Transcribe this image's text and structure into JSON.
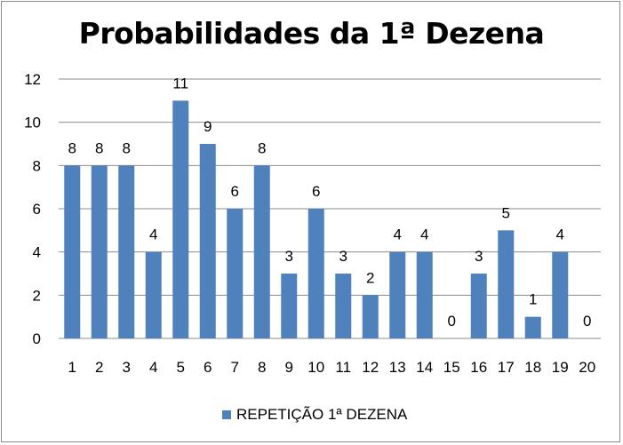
{
  "chart_data": {
    "type": "bar",
    "title": "Probabilidades da 1ª Dezena",
    "categories": [
      "1",
      "2",
      "3",
      "4",
      "5",
      "6",
      "7",
      "8",
      "9",
      "10",
      "11",
      "12",
      "13",
      "14",
      "15",
      "16",
      "17",
      "18",
      "19",
      "20"
    ],
    "series": [
      {
        "name": "REPETIÇÃO 1ª DEZENA",
        "color": "#4f81bd",
        "values": [
          8,
          8,
          8,
          4,
          11,
          9,
          6,
          8,
          3,
          6,
          3,
          2,
          4,
          4,
          0,
          3,
          5,
          1,
          4,
          0
        ]
      }
    ],
    "ylim": [
      0,
      12
    ],
    "yticks": [
      0,
      2,
      4,
      6,
      8,
      10,
      12
    ],
    "grid": true,
    "legend_position": "bottom",
    "data_labels": true
  }
}
